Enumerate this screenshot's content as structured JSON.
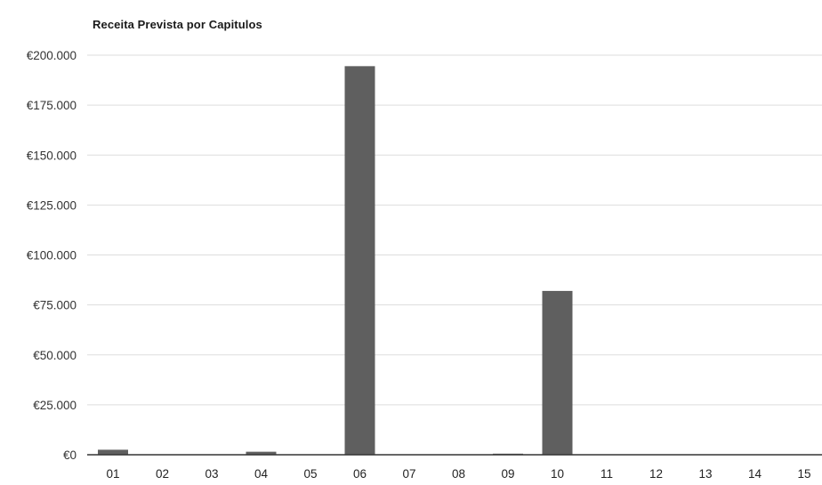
{
  "chart_data": {
    "type": "bar",
    "title": "Receita Prevista por Capitulos",
    "xlabel": "",
    "ylabel": "",
    "categories": [
      "01",
      "02",
      "03",
      "04",
      "05",
      "06",
      "07",
      "08",
      "09",
      "10",
      "11",
      "12",
      "13",
      "14",
      "15"
    ],
    "values": [
      2500,
      0,
      0,
      1500,
      0,
      194500,
      0,
      0,
      500,
      82000,
      0,
      0,
      0,
      0,
      0
    ],
    "ylim": [
      0,
      200000
    ],
    "yticks": [
      0,
      25000,
      50000,
      75000,
      100000,
      125000,
      150000,
      175000,
      200000
    ],
    "ytick_labels": [
      "€0",
      "€25.000",
      "€50.000",
      "€75.000",
      "€100.000",
      "€125.000",
      "€150.000",
      "€175.000",
      "€200.000"
    ],
    "grid": true,
    "legend": "none",
    "colors": {
      "bar": "#5f5f5f",
      "grid": "#dddddd",
      "axis": "#333333"
    }
  }
}
